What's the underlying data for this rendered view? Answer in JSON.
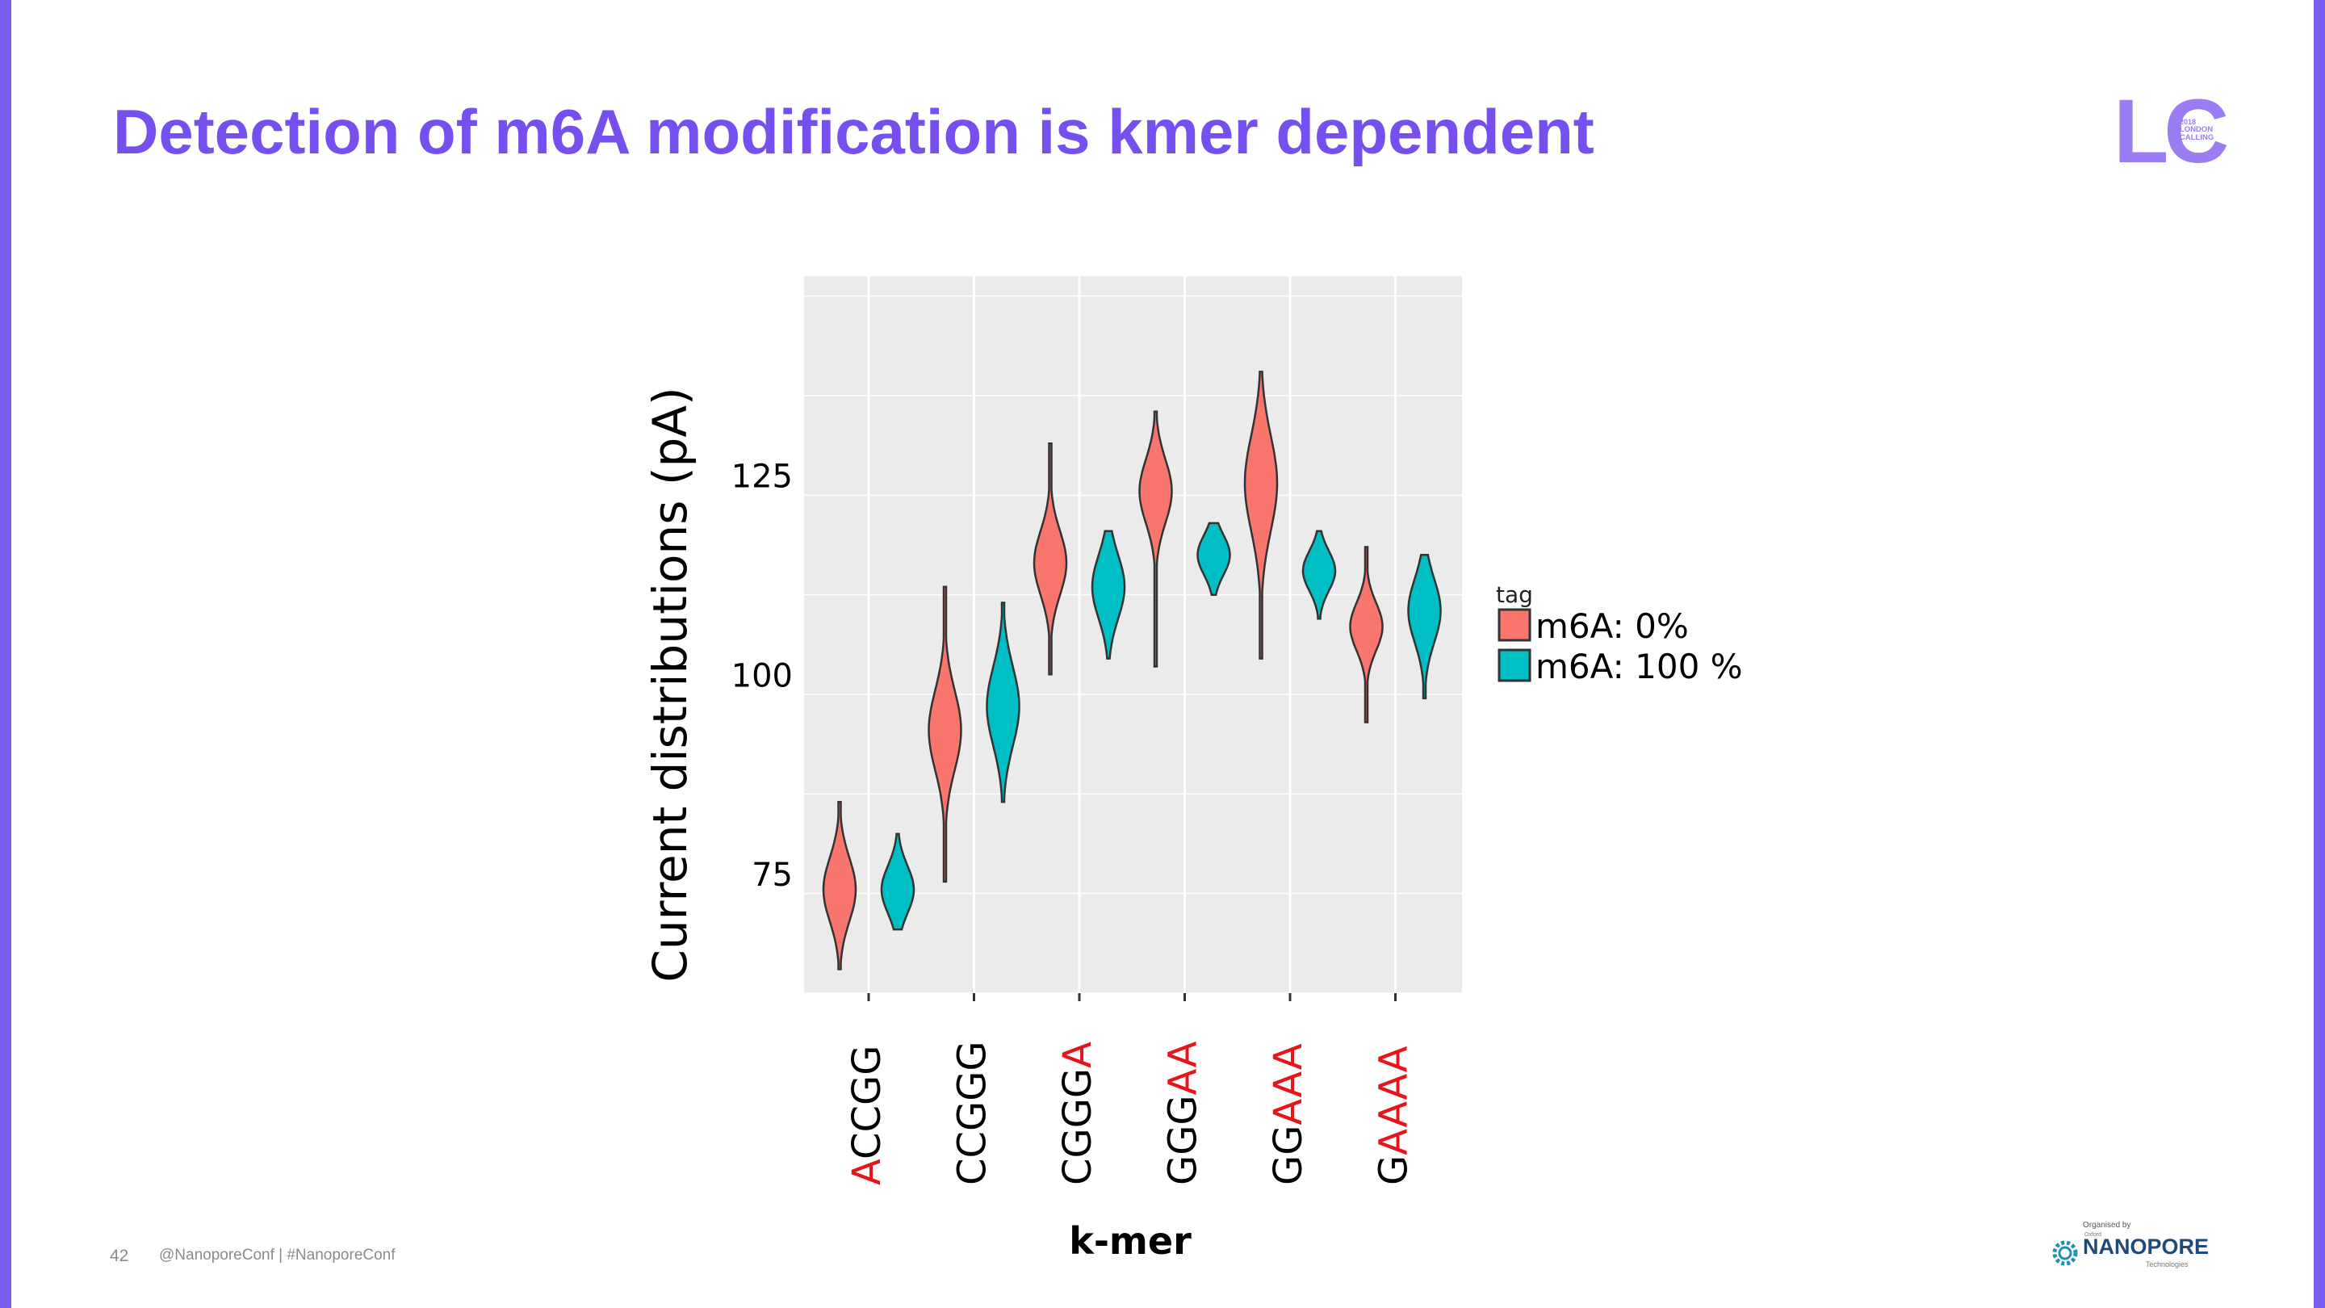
{
  "slide": {
    "title": "Detection of m6A modification is kmer dependent",
    "page_number": "42",
    "footer_social": "@NanoporeConf | #NanoporeConf",
    "organised_by": "Organised by",
    "accent_color": "#7550ee"
  },
  "logo_lc": {
    "letters": "LC",
    "year": "2018",
    "line1": "LONDON",
    "line2": "CALLING"
  },
  "logo_nanopore": {
    "small": "Oxford",
    "name": "NANOPORE",
    "sub": "Technologies"
  },
  "chart_data": {
    "type": "violin",
    "xlabel": "k-mer",
    "ylabel": "Current distributions (pA)",
    "ylim": [
      60,
      150
    ],
    "yticks": [
      75,
      100,
      125
    ],
    "grid": true,
    "legend": {
      "title": "tag",
      "position": "right",
      "entries": [
        {
          "name": "m6A: 0%",
          "color": "#f8766d"
        },
        {
          "name": "m6A: 100 %",
          "color": "#00bfc4"
        }
      ]
    },
    "categories": [
      {
        "prefix": "",
        "suffix": "ACCGG",
        "label": "ACCGG",
        "highlight": "A"
      },
      {
        "prefix": "CCGGG",
        "suffix": "",
        "label": "CCGGG",
        "highlight": ""
      },
      {
        "prefix": "CGGG",
        "suffix": "A",
        "label": "CGGGA",
        "highlight": "A"
      },
      {
        "prefix": "GGG",
        "suffix": "AA",
        "label": "GGGAA",
        "highlight": "AA"
      },
      {
        "prefix": "GG",
        "suffix": "AAA",
        "label": "GGAAA",
        "highlight": "AAA"
      },
      {
        "prefix": "G",
        "suffix": "AAAA",
        "label": "GAAAA",
        "highlight": "AAAA"
      }
    ],
    "series": [
      {
        "name": "m6A: 0%",
        "color": "#f8766d",
        "violins": [
          {
            "min": 63,
            "max": 84,
            "median": 73,
            "spread": 4
          },
          {
            "min": 74,
            "max": 111,
            "median": 93,
            "spread": 5
          },
          {
            "min": 100,
            "max": 129,
            "median": 114,
            "spread": 4
          },
          {
            "min": 101,
            "max": 133,
            "median": 123,
            "spread": 4
          },
          {
            "min": 102,
            "max": 138,
            "median": 124,
            "spread": 6
          },
          {
            "min": 94,
            "max": 116,
            "median": 106,
            "spread": 3
          }
        ]
      },
      {
        "name": "m6A: 100 %",
        "color": "#00bfc4",
        "violins": [
          {
            "min": 68,
            "max": 80,
            "median": 73,
            "spread": 3
          },
          {
            "min": 84,
            "max": 109,
            "median": 96,
            "spread": 5
          },
          {
            "min": 102,
            "max": 118,
            "median": 111,
            "spread": 4
          },
          {
            "min": 110,
            "max": 119,
            "median": 115,
            "spread": 2.5
          },
          {
            "min": 107,
            "max": 118,
            "median": 113,
            "spread": 2.5
          },
          {
            "min": 97,
            "max": 115,
            "median": 108,
            "spread": 4
          }
        ]
      }
    ]
  }
}
